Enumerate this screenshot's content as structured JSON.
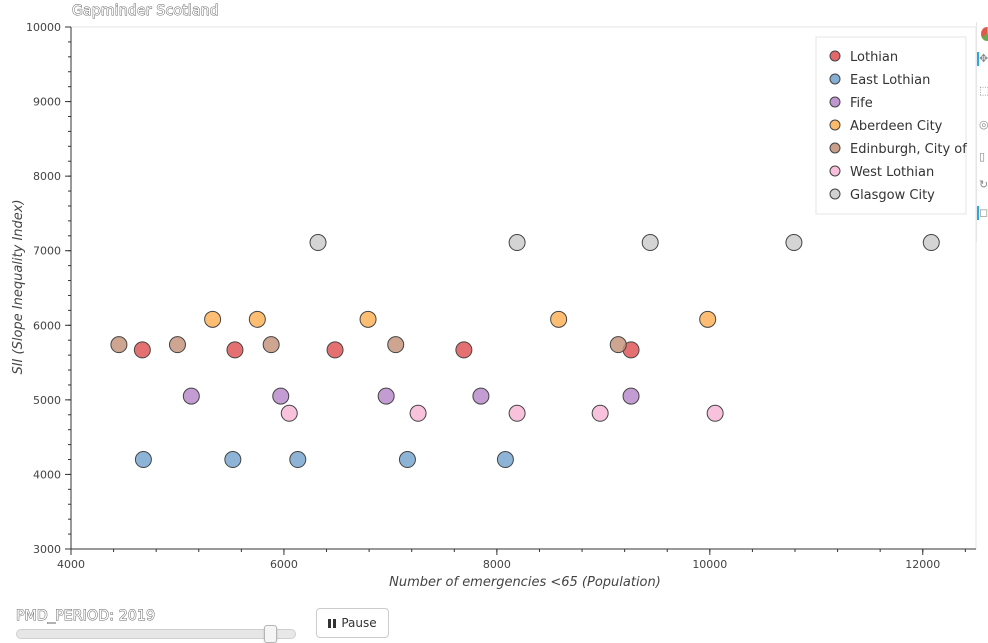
{
  "title": "Gapminder Scotland",
  "slider": {
    "label": "PMD_PERIOD: 2019",
    "value_fraction": 0.91
  },
  "play_button": {
    "label": "Pause",
    "icon": "pause-icon"
  },
  "toolbar": {
    "tools": [
      "pan-icon",
      "box-zoom-icon",
      "wheel-zoom-icon",
      "save-icon",
      "reset-icon",
      "hover-icon"
    ]
  },
  "chart_data": {
    "type": "scatter",
    "title": "Gapminder Scotland",
    "xlabel": "Number of emergencies <65 (Population)",
    "ylabel": "SII (Slope Inequality Index)",
    "xlim": [
      4000,
      12500
    ],
    "ylim": [
      3000,
      10000
    ],
    "xticks": [
      "4000",
      "6000",
      "8000",
      "10000",
      "12000"
    ],
    "yticks": [
      "3000",
      "4000",
      "5000",
      "6000",
      "7000",
      "8000",
      "9000",
      "10000"
    ],
    "grid": false,
    "legend_position": "top-right",
    "series": [
      {
        "name": "Lothian",
        "color": "#e15759",
        "points": [
          [
            4670,
            5670
          ],
          [
            5540,
            5670
          ],
          [
            6480,
            5670
          ],
          [
            7690,
            5670
          ],
          [
            9260,
            5670
          ]
        ]
      },
      {
        "name": "East Lothian",
        "color": "#79a6cf",
        "points": [
          [
            4680,
            4200
          ],
          [
            5520,
            4200
          ],
          [
            6130,
            4200
          ],
          [
            7160,
            4200
          ],
          [
            8080,
            4200
          ]
        ]
      },
      {
        "name": "Fife",
        "color": "#b98bcb",
        "points": [
          [
            5130,
            5050
          ],
          [
            5970,
            5050
          ],
          [
            6960,
            5050
          ],
          [
            7850,
            5050
          ],
          [
            9260,
            5050
          ]
        ]
      },
      {
        "name": "Aberdeen City",
        "color": "#fdb25a",
        "points": [
          [
            5330,
            6080
          ],
          [
            5750,
            6080
          ],
          [
            6790,
            6080
          ],
          [
            8580,
            6080
          ],
          [
            9980,
            6080
          ]
        ]
      },
      {
        "name": "Edinburgh, City of",
        "color": "#c4957c",
        "points": [
          [
            4450,
            5740
          ],
          [
            5000,
            5740
          ],
          [
            5880,
            5740
          ],
          [
            7050,
            5740
          ],
          [
            9140,
            5740
          ]
        ]
      },
      {
        "name": "West Lothian",
        "color": "#f7b7d7",
        "points": [
          [
            6050,
            4820
          ],
          [
            7260,
            4820
          ],
          [
            8190,
            4820
          ],
          [
            8970,
            4820
          ],
          [
            10050,
            4820
          ]
        ]
      },
      {
        "name": "Glasgow City",
        "color": "#cccccc",
        "points": [
          [
            6320,
            7110
          ],
          [
            8190,
            7110
          ],
          [
            9440,
            7110
          ],
          [
            10790,
            7110
          ],
          [
            12080,
            7110
          ]
        ]
      }
    ]
  }
}
